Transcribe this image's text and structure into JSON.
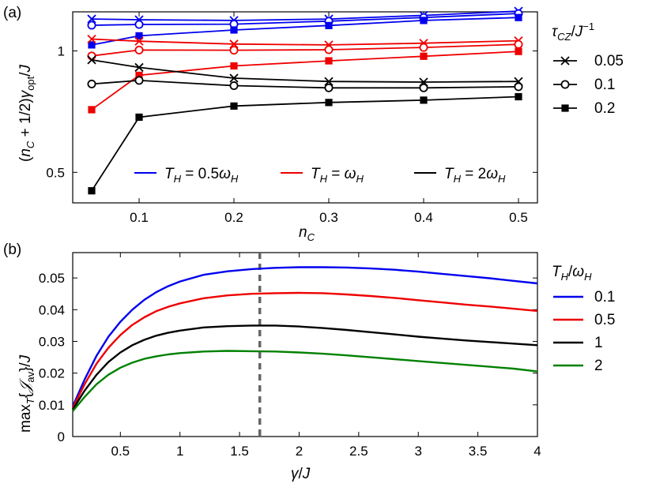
{
  "chart_data": [
    {
      "panel_label": "(a)",
      "type": "line",
      "xlabel": "n_C",
      "ylabel": "(n_C + 1/2)γ_opt/J",
      "xlim": [
        0.03,
        0.52
      ],
      "ylim": [
        0.42,
        1.25
      ],
      "yscale": "log",
      "x": [
        0.05,
        0.1,
        0.2,
        0.3,
        0.4,
        0.5
      ],
      "xticks": [
        "0.1",
        "0.2",
        "0.3",
        "0.4",
        "0.5"
      ],
      "xtick_values": [
        0.1,
        0.2,
        0.3,
        0.4,
        0.5
      ],
      "yticks": [
        "0.5",
        "1"
      ],
      "ytick_values": [
        0.5,
        1.0
      ],
      "color_legend": [
        {
          "label": "T_H = 0.5ω_H",
          "color": "#0000ee"
        },
        {
          "label": "T_H = ω_H",
          "color": "#ee0000"
        },
        {
          "label": "T_H = 2ω_H",
          "color": "#000000"
        }
      ],
      "marker_legend_title": "τ_CZ/J^{-1}",
      "marker_legend": [
        {
          "label": "0.05",
          "marker": "x"
        },
        {
          "label": "0.1",
          "marker": "o"
        },
        {
          "label": "0.2",
          "marker": "s"
        }
      ],
      "series": [
        {
          "color": "#0000ee",
          "marker": "x",
          "values": [
            1.2,
            1.195,
            1.19,
            1.2,
            1.225,
            1.255
          ]
        },
        {
          "color": "#0000ee",
          "marker": "o",
          "values": [
            1.158,
            1.163,
            1.165,
            1.185,
            1.21,
            1.238
          ]
        },
        {
          "color": "#0000ee",
          "marker": "s",
          "values": [
            1.035,
            1.09,
            1.127,
            1.156,
            1.19,
            1.21
          ]
        },
        {
          "color": "#ee0000",
          "marker": "x",
          "values": [
            1.07,
            1.057,
            1.04,
            1.035,
            1.045,
            1.06
          ]
        },
        {
          "color": "#ee0000",
          "marker": "o",
          "values": [
            0.972,
            1.005,
            1.004,
            1.007,
            1.02,
            1.038
          ]
        },
        {
          "color": "#ee0000",
          "marker": "s",
          "values": [
            0.715,
            0.87,
            0.918,
            0.945,
            0.97,
            0.997
          ]
        },
        {
          "color": "#000000",
          "marker": "x",
          "values": [
            0.95,
            0.91,
            0.856,
            0.84,
            0.837,
            0.84
          ]
        },
        {
          "color": "#000000",
          "marker": "o",
          "values": [
            0.828,
            0.845,
            0.82,
            0.81,
            0.81,
            0.815
          ]
        },
        {
          "color": "#000000",
          "marker": "s",
          "values": [
            0.45,
            0.685,
            0.73,
            0.745,
            0.755,
            0.77
          ]
        }
      ]
    },
    {
      "panel_label": "(b)",
      "type": "line",
      "xlabel": "γ/J",
      "ylabel": "max_T{J_av}/J",
      "xlim": [
        0.1,
        4.0
      ],
      "ylim": [
        0,
        0.058
      ],
      "xticks": [
        "0.5",
        "1",
        "1.5",
        "2",
        "2.5",
        "3",
        "3.5",
        "4"
      ],
      "xtick_values": [
        0.5,
        1,
        1.5,
        2,
        2.5,
        3,
        3.5,
        4
      ],
      "yticks": [
        "0",
        "0.01",
        "0.02",
        "0.03",
        "0.04",
        "0.05"
      ],
      "ytick_values": [
        0,
        0.01,
        0.02,
        0.03,
        0.04,
        0.05
      ],
      "vline_x": 1.67,
      "legend_title": "T_H/ω_H",
      "series": [
        {
          "name": "0.1",
          "color": "#0000ee",
          "x": [
            0.1,
            0.2,
            0.3,
            0.4,
            0.5,
            0.6,
            0.7,
            0.8,
            0.9,
            1.0,
            1.2,
            1.4,
            1.6,
            1.8,
            2.0,
            2.2,
            2.4,
            2.6,
            2.8,
            3.0,
            3.2,
            3.4,
            3.6,
            3.8,
            4.0
          ],
          "values": [
            0.0095,
            0.018,
            0.0255,
            0.0315,
            0.0362,
            0.04,
            0.0431,
            0.0455,
            0.0474,
            0.0489,
            0.051,
            0.0521,
            0.0528,
            0.0532,
            0.0534,
            0.0534,
            0.0533,
            0.053,
            0.0526,
            0.052,
            0.0513,
            0.0506,
            0.0499,
            0.0491,
            0.0483
          ]
        },
        {
          "name": "0.5",
          "color": "#ee0000",
          "x": [
            0.1,
            0.2,
            0.3,
            0.4,
            0.5,
            0.6,
            0.7,
            0.8,
            0.9,
            1.0,
            1.2,
            1.4,
            1.6,
            1.8,
            2.0,
            2.2,
            2.4,
            2.6,
            2.8,
            3.0,
            3.2,
            3.4,
            3.6,
            3.8,
            4.0
          ],
          "values": [
            0.009,
            0.0165,
            0.023,
            0.028,
            0.032,
            0.0352,
            0.0376,
            0.0395,
            0.0409,
            0.042,
            0.0436,
            0.0445,
            0.045,
            0.0452,
            0.0453,
            0.0452,
            0.0448,
            0.0443,
            0.0437,
            0.043,
            0.0423,
            0.0416,
            0.041,
            0.0403,
            0.0396
          ]
        },
        {
          "name": "1",
          "color": "#000000",
          "x": [
            0.1,
            0.2,
            0.3,
            0.4,
            0.5,
            0.6,
            0.7,
            0.8,
            0.9,
            1.0,
            1.2,
            1.4,
            1.6,
            1.8,
            2.0,
            2.2,
            2.4,
            2.6,
            2.8,
            3.0,
            3.2,
            3.4,
            3.6,
            3.8,
            4.0
          ],
          "values": [
            0.0085,
            0.0145,
            0.0195,
            0.0235,
            0.0265,
            0.0288,
            0.0305,
            0.0318,
            0.0327,
            0.0334,
            0.0344,
            0.0348,
            0.035,
            0.035,
            0.0347,
            0.0342,
            0.0336,
            0.0329,
            0.0322,
            0.0315,
            0.0309,
            0.0303,
            0.0298,
            0.0293,
            0.0288
          ]
        },
        {
          "name": "2",
          "color": "#008000",
          "x": [
            0.1,
            0.2,
            0.3,
            0.4,
            0.5,
            0.6,
            0.7,
            0.8,
            0.9,
            1.0,
            1.2,
            1.4,
            1.6,
            1.8,
            2.0,
            2.2,
            2.4,
            2.6,
            2.8,
            3.0,
            3.2,
            3.4,
            3.6,
            3.8,
            4.0
          ],
          "values": [
            0.008,
            0.0125,
            0.0165,
            0.0195,
            0.0217,
            0.0233,
            0.0245,
            0.0253,
            0.0259,
            0.0263,
            0.0268,
            0.027,
            0.0269,
            0.0268,
            0.0265,
            0.0261,
            0.0256,
            0.025,
            0.0244,
            0.0238,
            0.0232,
            0.0226,
            0.022,
            0.0214,
            0.0205
          ]
        }
      ]
    }
  ]
}
